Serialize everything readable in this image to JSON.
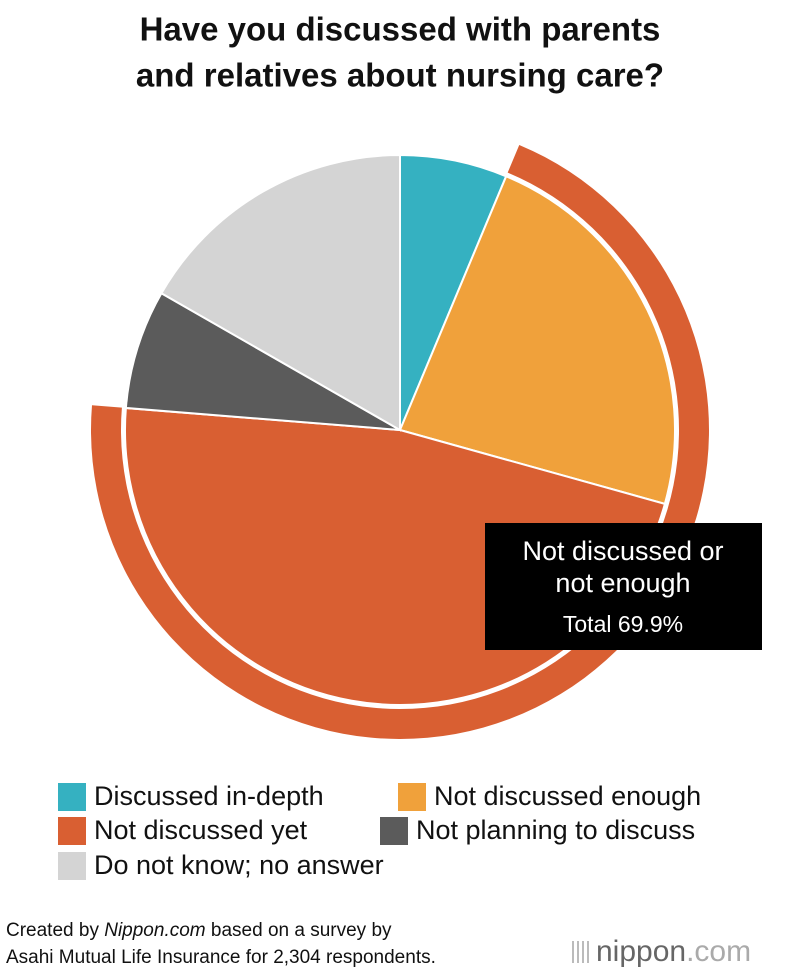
{
  "chart_data": {
    "type": "pie",
    "title": [
      "Have you discussed with parents",
      "and relatives about nursing care?"
    ],
    "categories": [
      "Discussed in-depth",
      "Not discussed enough",
      "Not discussed yet",
      "Not planning to discuss",
      "Do not know; no answer"
    ],
    "values": [
      6.3,
      23.0,
      46.9,
      7.0,
      16.7
    ],
    "colors": [
      "#35b1c1",
      "#f0a13b",
      "#d95f32",
      "#5b5b5b",
      "#d4d4d4"
    ],
    "annotation": {
      "lines": [
        "Not discussed or",
        "not enough"
      ],
      "total": "Total 69.9%"
    },
    "source": [
      "Created by",
      "Nippon.com",
      "based on a survey by",
      "Asahi Mutual Life Insurance for 2,304 respondents."
    ],
    "logo": [
      "nippon",
      ".com"
    ]
  }
}
